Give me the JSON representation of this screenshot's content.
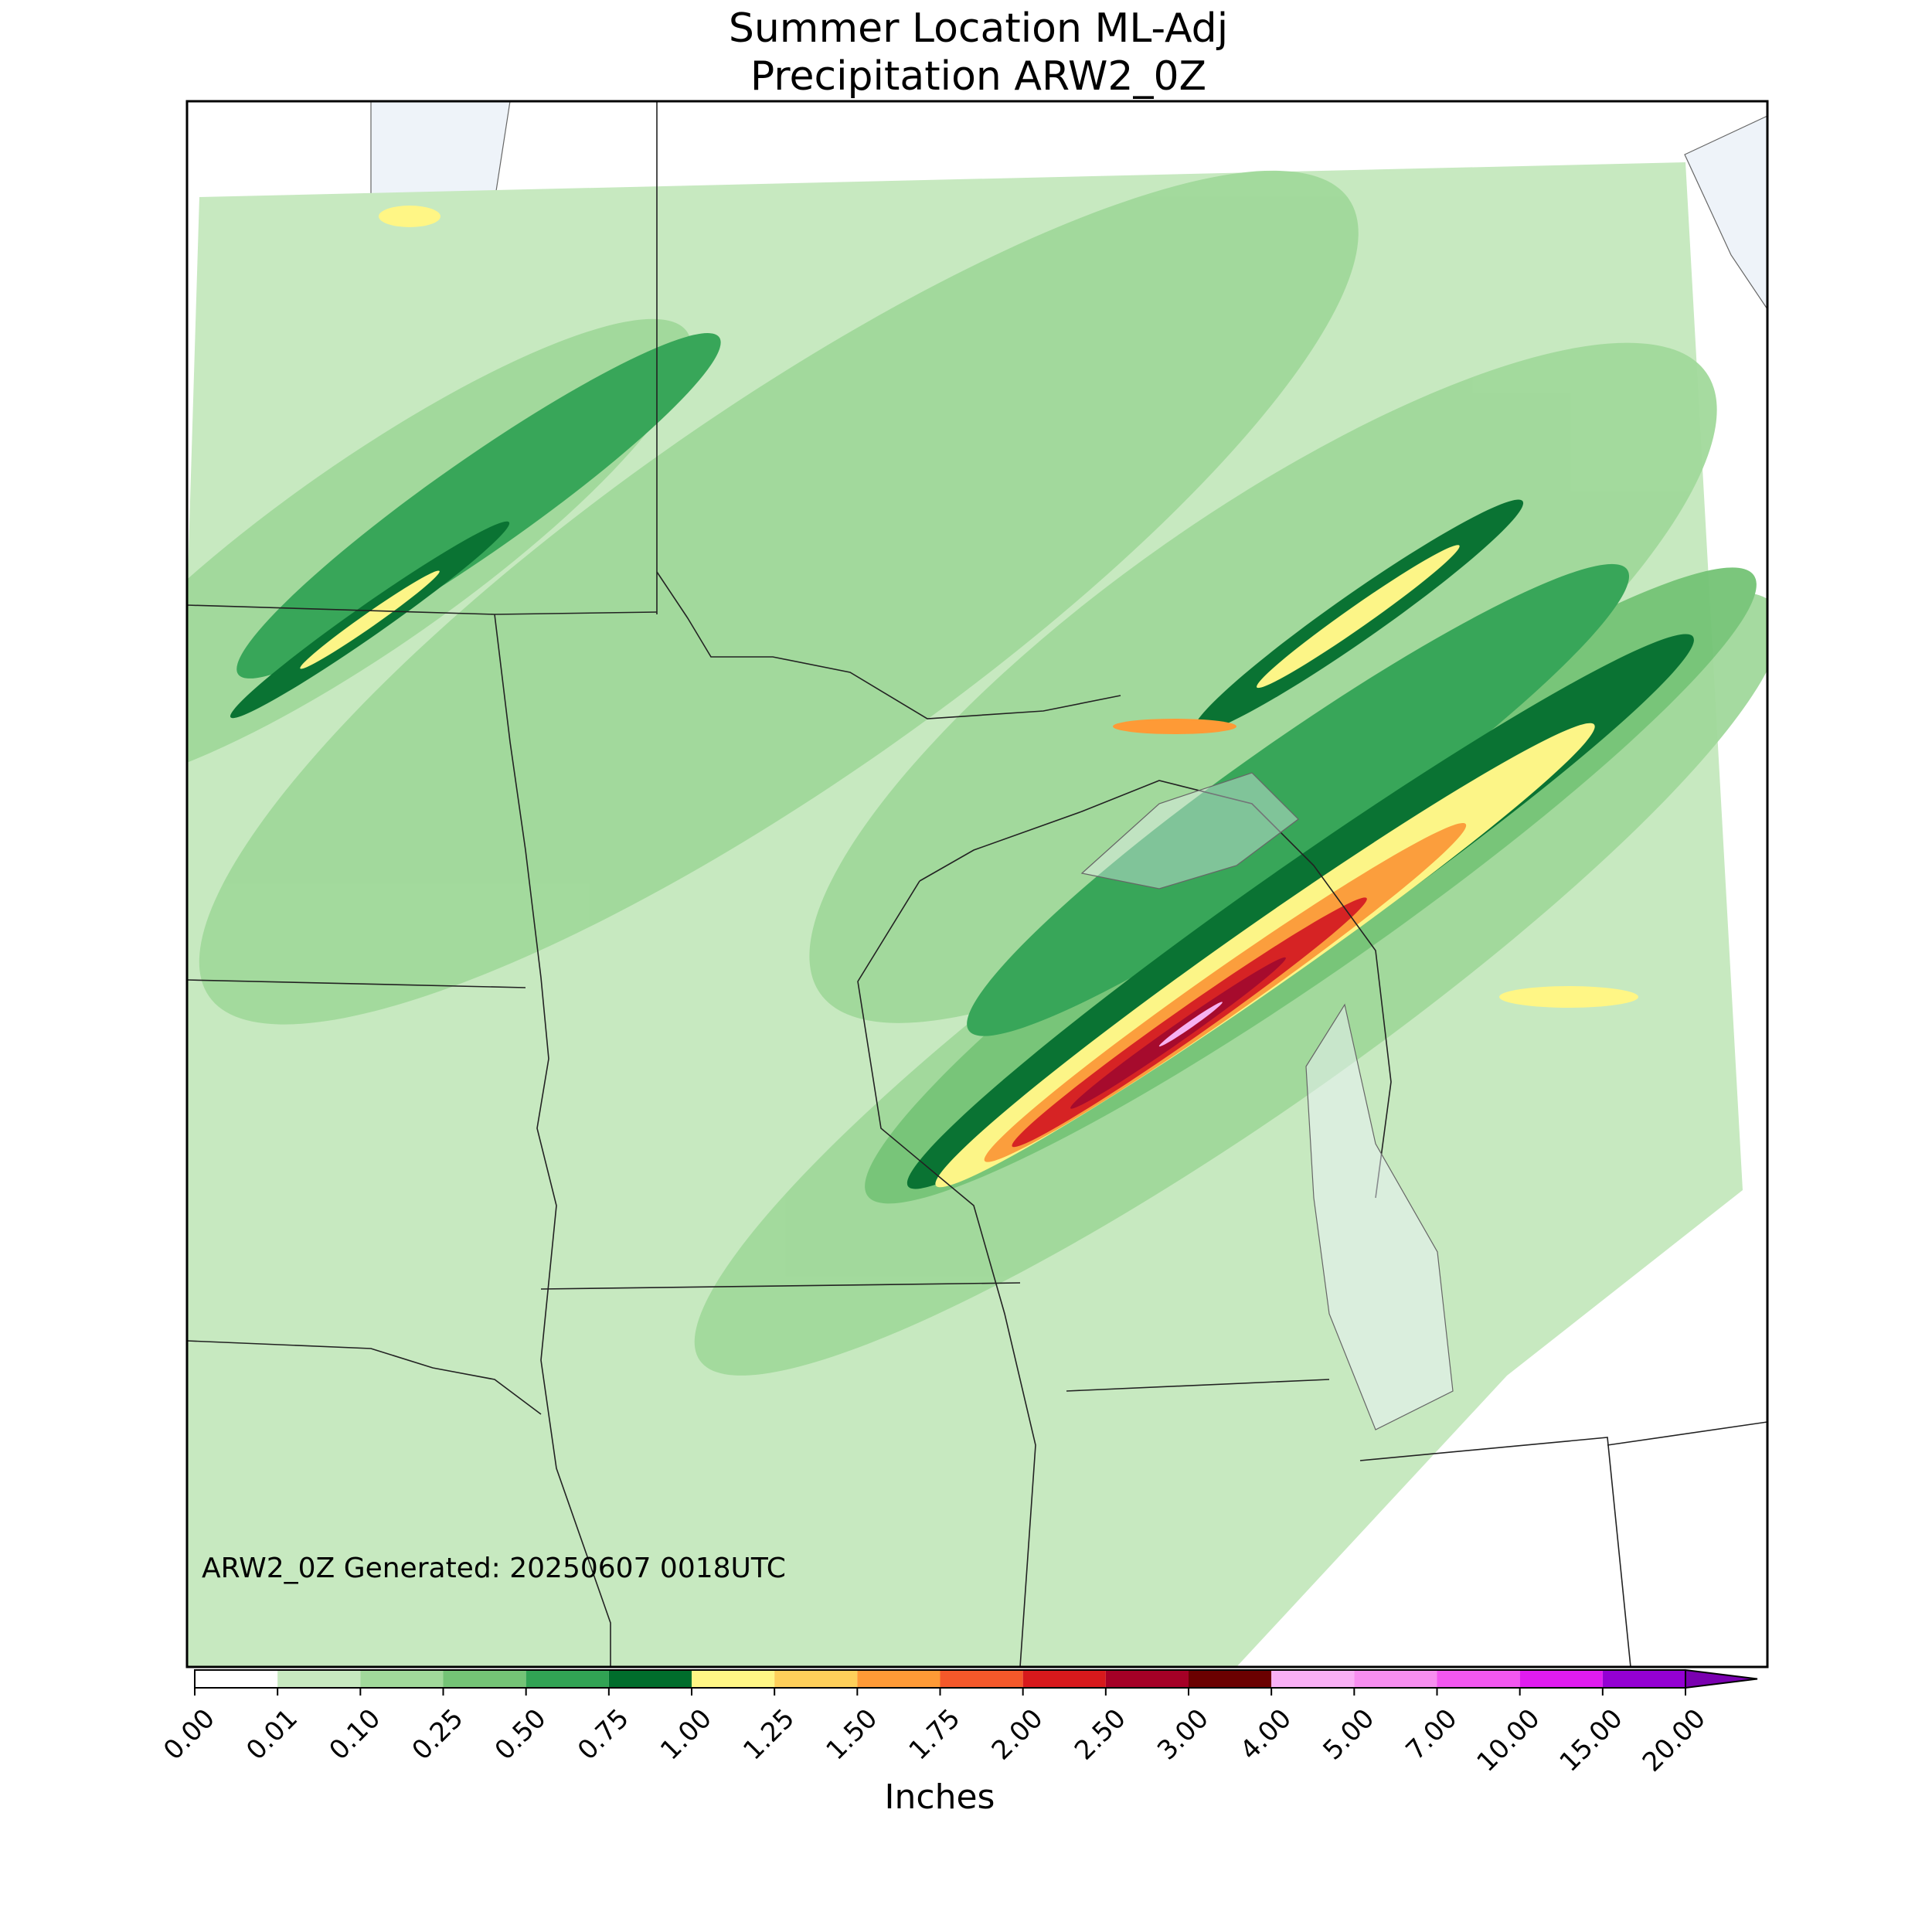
{
  "title": [
    "Summer Location ML-Adj",
    "Precipitation ARW2_0Z"
  ],
  "annotation": "ARW2_0Z Generated: 20250607 0018UTC",
  "colorbar": {
    "label": "Inches",
    "ticks": [
      {
        "value": 0,
        "label": "0.00"
      },
      {
        "value": 0.01,
        "label": "0.01"
      },
      {
        "value": 0.1,
        "label": "0.10"
      },
      {
        "value": 0.25,
        "label": "0.25"
      },
      {
        "value": 0.5,
        "label": "0.50"
      },
      {
        "value": 0.75,
        "label": "0.75"
      },
      {
        "value": 1,
        "label": "1.00"
      },
      {
        "value": 1.25,
        "label": "1.25"
      },
      {
        "value": 1.5,
        "label": "1.50"
      },
      {
        "value": 1.75,
        "label": "1.75"
      },
      {
        "value": 2,
        "label": "2.00"
      },
      {
        "value": 2.5,
        "label": "2.50"
      },
      {
        "value": 3,
        "label": "3.00"
      },
      {
        "value": 4,
        "label": "4.00"
      },
      {
        "value": 5,
        "label": "5.00"
      },
      {
        "value": 7,
        "label": "7.00"
      },
      {
        "value": 10,
        "label": "10.00"
      },
      {
        "value": 15,
        "label": "15.00"
      },
      {
        "value": 20,
        "label": "20.00"
      }
    ],
    "colors": [
      "#ffffff",
      "#c7e9c0",
      "#a1d99b",
      "#74c476",
      "#31a354",
      "#006d2c",
      "#fff685",
      "#fecf5a",
      "#fe9a36",
      "#f4582a",
      "#d7191c",
      "#a50026",
      "#6b0000",
      "#f9b0f5",
      "#f78ef0",
      "#f257f0",
      "#e01cf0",
      "#9400d3"
    ],
    "extend_color": "#7a00b0"
  }
}
